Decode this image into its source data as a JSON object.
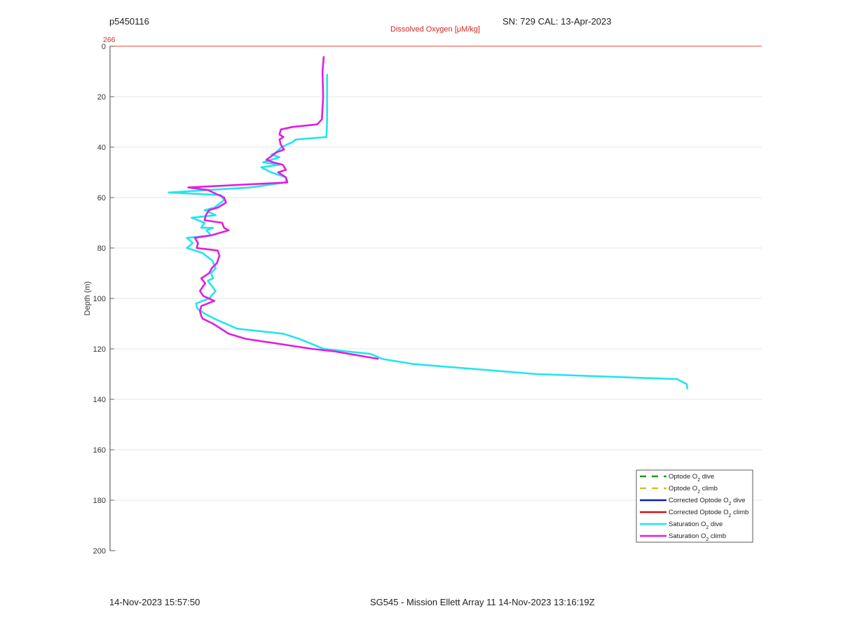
{
  "header": {
    "profile_id": "p5450116",
    "sensor_info": "SN: 729  CAL: 13-Apr-2023"
  },
  "footer": {
    "generated": "14-Nov-2023 15:57:50",
    "mission": "SG545 - Mission Ellett Array 11 14-Nov-2023 13:16:19Z"
  },
  "chart_data": {
    "type": "line",
    "top_axis_label": "Dissolved Oxygen [μM/kg]",
    "top_axis_tick": "266",
    "ylabel": "Depth (m)",
    "ylim": [
      0,
      200
    ],
    "y_reversed": true,
    "yticks": [
      0,
      20,
      40,
      60,
      80,
      100,
      120,
      140,
      160,
      180,
      200
    ],
    "grid": true,
    "legend_position": "bottom-right",
    "legend": [
      {
        "label": "Optode O",
        "sub": "2",
        "suffix": " dive",
        "color": "#1a9a1a",
        "dash": true
      },
      {
        "label": "Optode O",
        "sub": "2",
        "suffix": " climb",
        "color": "#d4c31a",
        "dash": true
      },
      {
        "label": "Corrected Optode O",
        "sub": "2",
        "suffix": " dive",
        "color": "#0a1fb8",
        "dash": false
      },
      {
        "label": "Corrected Optode O",
        "sub": "2",
        "suffix": " climb",
        "color": "#c81414",
        "dash": false
      },
      {
        "label": "Saturation O",
        "sub": "2",
        "suffix": " dive",
        "color": "#22e5ee",
        "dash": false
      },
      {
        "label": "Saturation O",
        "sub": "2",
        "suffix": " climb",
        "color": "#e01ee0",
        "dash": false
      }
    ],
    "x_scale_note": "x values are relative positions across the plot width (0 = left axis, 1 = right edge)",
    "series": [
      {
        "name": "Saturation O2 dive",
        "color": "#22e5ee",
        "points": [
          [
            0.333,
            11
          ],
          [
            0.333,
            20
          ],
          [
            0.333,
            30
          ],
          [
            0.332,
            36
          ],
          [
            0.285,
            37
          ],
          [
            0.28,
            38
          ],
          [
            0.263,
            40
          ],
          [
            0.255,
            42
          ],
          [
            0.248,
            43
          ],
          [
            0.26,
            44
          ],
          [
            0.235,
            46
          ],
          [
            0.26,
            47
          ],
          [
            0.232,
            48
          ],
          [
            0.247,
            50
          ],
          [
            0.27,
            52
          ],
          [
            0.27,
            54
          ],
          [
            0.215,
            56
          ],
          [
            0.09,
            58
          ],
          [
            0.17,
            59
          ],
          [
            0.175,
            61
          ],
          [
            0.16,
            64
          ],
          [
            0.145,
            65
          ],
          [
            0.162,
            67
          ],
          [
            0.125,
            68
          ],
          [
            0.145,
            70
          ],
          [
            0.14,
            72
          ],
          [
            0.158,
            72
          ],
          [
            0.148,
            73
          ],
          [
            0.155,
            75
          ],
          [
            0.118,
            76
          ],
          [
            0.127,
            78
          ],
          [
            0.118,
            80
          ],
          [
            0.142,
            82
          ],
          [
            0.157,
            85
          ],
          [
            0.162,
            88
          ],
          [
            0.155,
            90
          ],
          [
            0.158,
            92
          ],
          [
            0.15,
            93
          ],
          [
            0.162,
            97
          ],
          [
            0.152,
            100
          ],
          [
            0.132,
            102
          ],
          [
            0.134,
            104
          ],
          [
            0.145,
            106
          ],
          [
            0.16,
            108
          ],
          [
            0.195,
            112
          ],
          [
            0.266,
            114
          ],
          [
            0.29,
            116
          ],
          [
            0.328,
            120
          ],
          [
            0.4,
            122
          ],
          [
            0.418,
            124
          ],
          [
            0.465,
            126
          ],
          [
            0.655,
            130
          ],
          [
            0.87,
            132
          ],
          [
            0.885,
            134
          ],
          [
            0.886,
            136
          ]
        ]
      },
      {
        "name": "Saturation O2 climb",
        "color": "#e01ee0",
        "points": [
          [
            0.328,
            4
          ],
          [
            0.326,
            10
          ],
          [
            0.327,
            20
          ],
          [
            0.325,
            29
          ],
          [
            0.318,
            31
          ],
          [
            0.28,
            32
          ],
          [
            0.262,
            33
          ],
          [
            0.26,
            35
          ],
          [
            0.266,
            36
          ],
          [
            0.26,
            37
          ],
          [
            0.262,
            39
          ],
          [
            0.267,
            41
          ],
          [
            0.256,
            42
          ],
          [
            0.24,
            45
          ],
          [
            0.25,
            46
          ],
          [
            0.265,
            47
          ],
          [
            0.27,
            49
          ],
          [
            0.258,
            50
          ],
          [
            0.27,
            52
          ],
          [
            0.272,
            54
          ],
          [
            0.12,
            56
          ],
          [
            0.15,
            57
          ],
          [
            0.175,
            60
          ],
          [
            0.178,
            62
          ],
          [
            0.165,
            64
          ],
          [
            0.152,
            65
          ],
          [
            0.147,
            67
          ],
          [
            0.145,
            69
          ],
          [
            0.172,
            70
          ],
          [
            0.175,
            72
          ],
          [
            0.182,
            73
          ],
          [
            0.155,
            75
          ],
          [
            0.13,
            76
          ],
          [
            0.135,
            78
          ],
          [
            0.133,
            80
          ],
          [
            0.165,
            81
          ],
          [
            0.168,
            83
          ],
          [
            0.164,
            86
          ],
          [
            0.156,
            88
          ],
          [
            0.152,
            90
          ],
          [
            0.14,
            92
          ],
          [
            0.146,
            94
          ],
          [
            0.138,
            97
          ],
          [
            0.143,
            99
          ],
          [
            0.16,
            101
          ],
          [
            0.14,
            103
          ],
          [
            0.138,
            105
          ],
          [
            0.14,
            107
          ],
          [
            0.142,
            108
          ],
          [
            0.158,
            110
          ],
          [
            0.182,
            114
          ],
          [
            0.208,
            116
          ],
          [
            0.31,
            120
          ],
          [
            0.345,
            121
          ],
          [
            0.412,
            124
          ]
        ]
      }
    ]
  }
}
